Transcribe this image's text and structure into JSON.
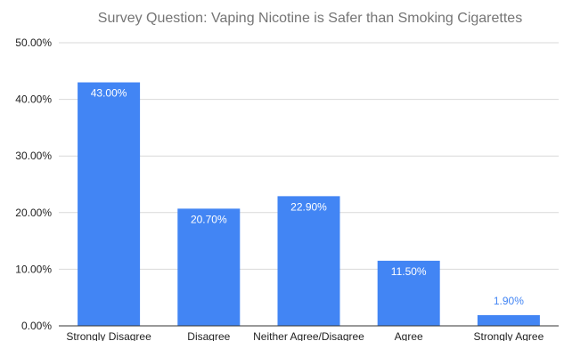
{
  "chart_data": {
    "type": "bar",
    "title": "Survey Question: Vaping Nicotine is Safer than Smoking Cigarettes",
    "xlabel": "",
    "ylabel": "",
    "categories": [
      "Strongly Disagree",
      "Disagree",
      "Neither Agree/Disagree",
      "Agree",
      "Strongly Agree"
    ],
    "values": [
      43.0,
      20.7,
      22.9,
      11.5,
      1.9
    ],
    "value_labels": [
      "43.00%",
      "20.70%",
      "22.90%",
      "11.50%",
      "1.90%"
    ],
    "ylim": [
      0,
      50
    ],
    "yticks": [
      0,
      10,
      20,
      30,
      40,
      50
    ],
    "ytick_labels": [
      "0.00%",
      "10.00%",
      "20.00%",
      "30.00%",
      "40.00%",
      "50.00%"
    ],
    "grid": true,
    "legend": "none"
  },
  "colors": {
    "bar": "#4285f4",
    "grid": "#d9d9d9",
    "axis": "#333333",
    "title": "#757575",
    "tick_text": "#222222",
    "label_inside": "#ffffff",
    "label_outside": "#4285f4"
  }
}
